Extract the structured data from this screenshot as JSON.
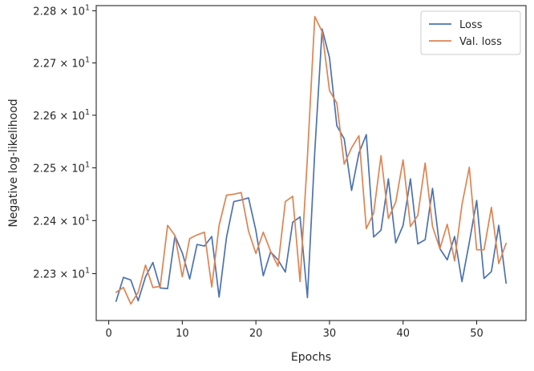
{
  "chart_data": {
    "type": "line",
    "title": "",
    "xlabel": "Epochs",
    "ylabel": "Negative log-likelihood",
    "y_scale": "log",
    "xlim": [
      -1.7,
      56.7
    ],
    "ylim": [
      22.212,
      22.81
    ],
    "x_ticks": [
      0,
      10,
      20,
      30,
      40,
      50
    ],
    "x_tick_labels": [
      "0",
      "10",
      "20",
      "30",
      "40",
      "50"
    ],
    "y_ticks": [
      22.3,
      22.4,
      22.5,
      22.6,
      22.7,
      22.8
    ],
    "y_tick_mantissas": [
      "2.23",
      "2.24",
      "2.25",
      "2.26",
      "2.27",
      "2.28"
    ],
    "y_tick_base": "10",
    "y_tick_exponent": "1",
    "grid": false,
    "legend_position": "top-right",
    "x": [
      1,
      2,
      3,
      4,
      5,
      6,
      7,
      8,
      9,
      10,
      11,
      12,
      13,
      14,
      15,
      16,
      17,
      18,
      19,
      20,
      21,
      22,
      23,
      24,
      25,
      26,
      27,
      28,
      29,
      30,
      31,
      32,
      33,
      34,
      35,
      36,
      37,
      38,
      39,
      40,
      41,
      42,
      43,
      44,
      45,
      46,
      47,
      48,
      49,
      50,
      51,
      52,
      53,
      54
    ],
    "series": [
      {
        "name": "Loss",
        "color": "#4c72b0",
        "values": [
          22.248,
          22.293,
          22.288,
          22.249,
          22.294,
          22.321,
          22.273,
          22.272,
          22.371,
          22.339,
          22.29,
          22.355,
          22.352,
          22.37,
          22.256,
          22.368,
          22.436,
          22.439,
          22.443,
          22.381,
          22.296,
          22.341,
          22.326,
          22.303,
          22.397,
          22.407,
          22.255,
          22.531,
          22.765,
          22.71,
          22.58,
          22.555,
          22.457,
          22.528,
          22.563,
          22.369,
          22.382,
          22.479,
          22.358,
          22.391,
          22.479,
          22.356,
          22.364,
          22.461,
          22.347,
          22.326,
          22.37,
          22.285,
          22.359,
          22.438,
          22.291,
          22.304,
          22.391,
          22.282
        ]
      },
      {
        "name": "Val. loss",
        "color": "#dd8452",
        "values": [
          22.265,
          22.274,
          22.243,
          22.265,
          22.316,
          22.274,
          22.276,
          22.391,
          22.372,
          22.294,
          22.366,
          22.373,
          22.378,
          22.275,
          22.391,
          22.448,
          22.45,
          22.453,
          22.38,
          22.338,
          22.378,
          22.342,
          22.314,
          22.436,
          22.446,
          22.285,
          22.52,
          22.789,
          22.76,
          22.647,
          22.623,
          22.507,
          22.538,
          22.561,
          22.385,
          22.414,
          22.523,
          22.404,
          22.435,
          22.515,
          22.389,
          22.41,
          22.509,
          22.389,
          22.347,
          22.393,
          22.324,
          22.43,
          22.501,
          22.345,
          22.345,
          22.425,
          22.319,
          22.357
        ]
      }
    ]
  }
}
